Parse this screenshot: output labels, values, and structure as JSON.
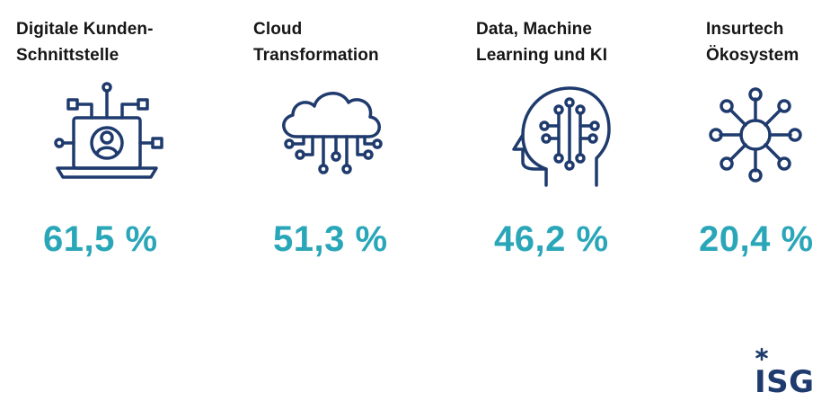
{
  "colors": {
    "icon_stroke": "#1f3b6e",
    "value_text": "#2aa6b9",
    "title_text": "#161616"
  },
  "items": [
    {
      "title": "Digitale Kunden-\nSchnittstelle",
      "value": "61,5 %",
      "icon": "laptop-user-network-icon"
    },
    {
      "title": "Cloud\nTransformation",
      "value": "51,3 %",
      "icon": "cloud-circuit-icon"
    },
    {
      "title": "Data, Machine\nLearning und KI",
      "value": "46,2 %",
      "icon": "ai-head-icon"
    },
    {
      "title": "Insurtech\nÖkosystem",
      "value": "20,4 %",
      "icon": "ecosystem-hub-icon"
    }
  ],
  "logo": {
    "text": "ISG",
    "icon": "isg-logo"
  }
}
